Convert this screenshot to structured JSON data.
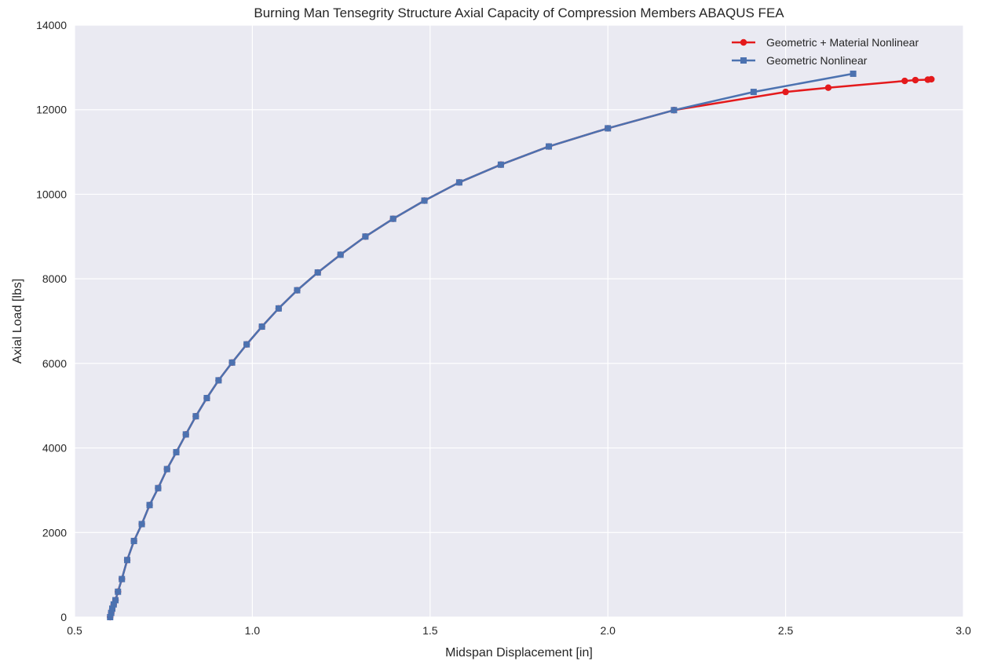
{
  "chart_data": {
    "type": "line",
    "title": "Burning Man Tensegrity Structure Axial Capacity of Compression Members ABAQUS FEA",
    "xlabel": "Midspan Displacement [in]",
    "ylabel": "Axial Load [lbs]",
    "xlim": [
      0.5,
      3.0
    ],
    "ylim": [
      0,
      14000
    ],
    "xticks": [
      "0.5",
      "1.0",
      "1.5",
      "2.0",
      "2.5",
      "3.0"
    ],
    "yticks": [
      "0",
      "2000",
      "4000",
      "6000",
      "8000",
      "10000",
      "12000",
      "14000"
    ],
    "grid": true,
    "legend_position": "top-right",
    "series": [
      {
        "name": "Geometric + Material Nonlinear",
        "color": "#e41a1c",
        "marker": "circle",
        "x": [
          0.6,
          0.603,
          0.606,
          0.61,
          0.615,
          0.622,
          0.633,
          0.648,
          0.667,
          0.689,
          0.711,
          0.735,
          0.76,
          0.786,
          0.813,
          0.841,
          0.872,
          0.905,
          0.943,
          0.984,
          1.027,
          1.074,
          1.126,
          1.184,
          1.248,
          1.318,
          1.396,
          1.484,
          1.582,
          1.699,
          1.834,
          2.0,
          2.186,
          2.5,
          2.62,
          2.835,
          2.865,
          2.9,
          2.91
        ],
        "y": [
          0,
          100,
          200,
          300,
          400,
          600,
          900,
          1350,
          1800,
          2200,
          2650,
          3050,
          3500,
          3900,
          4320,
          4750,
          5180,
          5600,
          6020,
          6450,
          6870,
          7300,
          7730,
          8150,
          8570,
          9000,
          9420,
          9850,
          10280,
          10700,
          11130,
          11560,
          11990,
          12420,
          12520,
          12680,
          12700,
          12710,
          12720
        ]
      },
      {
        "name": "Geometric Nonlinear",
        "color": "#4c72b0",
        "marker": "square",
        "x": [
          0.6,
          0.603,
          0.606,
          0.61,
          0.615,
          0.622,
          0.633,
          0.648,
          0.667,
          0.689,
          0.711,
          0.735,
          0.76,
          0.786,
          0.813,
          0.841,
          0.872,
          0.905,
          0.943,
          0.984,
          1.027,
          1.074,
          1.126,
          1.184,
          1.248,
          1.318,
          1.396,
          1.484,
          1.582,
          1.699,
          1.834,
          2.0,
          2.186,
          2.41,
          2.69
        ],
        "y": [
          0,
          100,
          200,
          300,
          400,
          600,
          900,
          1350,
          1800,
          2200,
          2650,
          3050,
          3500,
          3900,
          4320,
          4750,
          5180,
          5600,
          6020,
          6450,
          6870,
          7300,
          7730,
          8150,
          8570,
          9000,
          9420,
          9850,
          10280,
          10700,
          11130,
          11560,
          11990,
          12420,
          12850
        ]
      }
    ],
    "style": {
      "plot_background": "#eaeaf2",
      "grid_color": "#ffffff",
      "text_color": "#262626"
    }
  }
}
